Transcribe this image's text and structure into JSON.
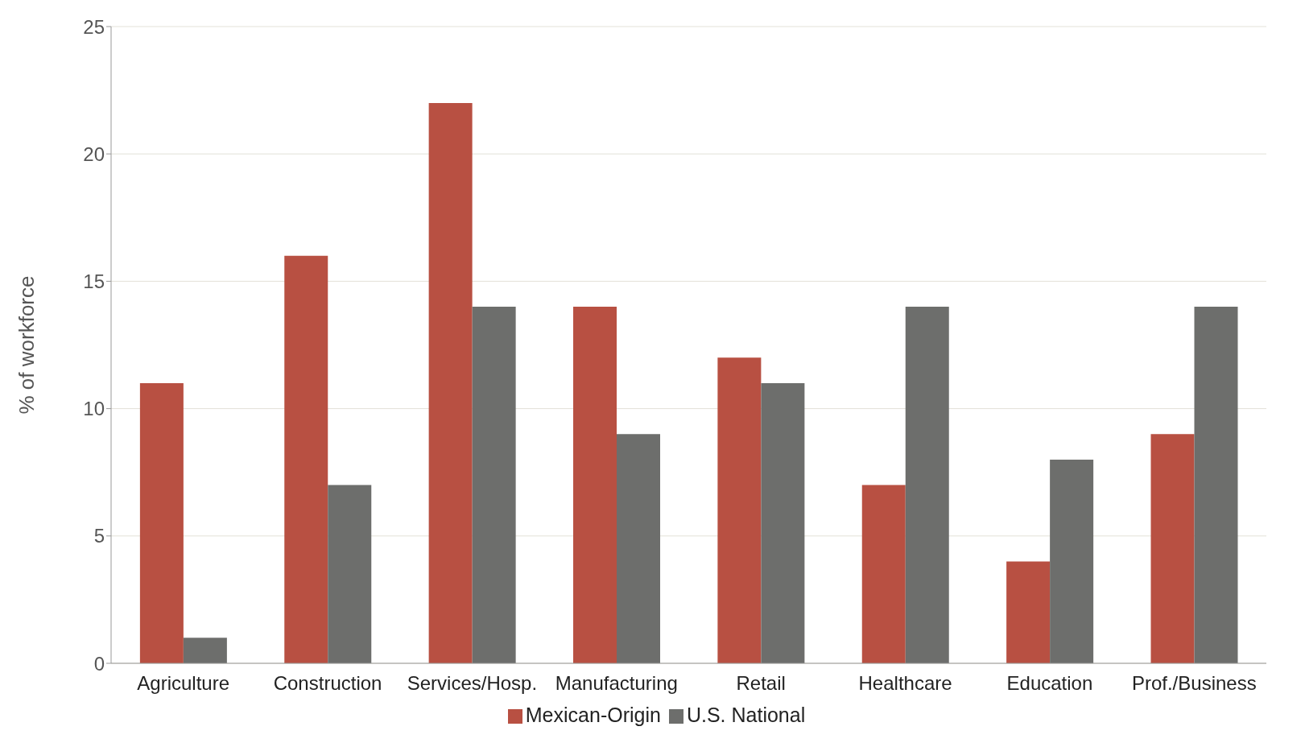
{
  "chart_data": {
    "type": "bar",
    "ylabel": "% of workforce",
    "categories": [
      "Agriculture",
      "Construction",
      "Services/Hosp.",
      "Manufacturing",
      "Retail",
      "Healthcare",
      "Education",
      "Prof./Business"
    ],
    "series": [
      {
        "name": "Mexican-Origin",
        "color": "#b85042",
        "values": [
          11,
          16,
          22,
          14,
          12,
          7,
          4,
          9
        ]
      },
      {
        "name": "U.S. National",
        "color": "#6d6e6c",
        "values": [
          1,
          7,
          14,
          9,
          11,
          14,
          8,
          14
        ]
      }
    ],
    "ylim": [
      0,
      25
    ],
    "yticks": [
      0,
      5,
      10,
      15,
      20,
      25
    ],
    "grid": "y",
    "legend": "bottom"
  }
}
